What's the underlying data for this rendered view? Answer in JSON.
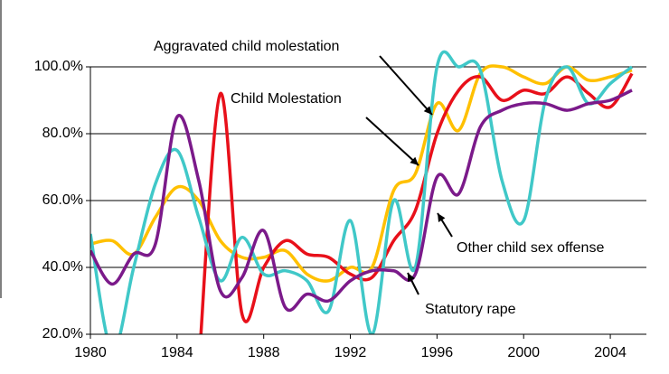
{
  "chart_data": {
    "type": "line",
    "x": [
      1980,
      1981,
      1982,
      1983,
      1984,
      1985,
      1986,
      1987,
      1988,
      1989,
      1990,
      1991,
      1992,
      1993,
      1994,
      1995,
      1996,
      1997,
      1998,
      1999,
      2000,
      2001,
      2002,
      2003,
      2004,
      2005
    ],
    "xlim": [
      1980,
      2006
    ],
    "xticks": [
      1980,
      1984,
      1988,
      1992,
      1996,
      2000,
      2004
    ],
    "ylim": [
      20,
      100
    ],
    "yticks": [
      {
        "value": 20,
        "label": "20.0%"
      },
      {
        "value": 40,
        "label": "40.0%"
      },
      {
        "value": 60,
        "label": "60.0%"
      },
      {
        "value": 80,
        "label": "80.0%"
      },
      {
        "value": 100,
        "label": "100.0%"
      }
    ],
    "grid": true,
    "series": [
      {
        "name": "Aggravated child molestation",
        "color": "#ffc000",
        "values": [
          47,
          48,
          44,
          55,
          64,
          60,
          48,
          43,
          43,
          45,
          38,
          36,
          40,
          40,
          63,
          68,
          89,
          81,
          98,
          100,
          97,
          95,
          100,
          96,
          97,
          99
        ]
      },
      {
        "name": "Child  Molestation",
        "color": "#e8101a",
        "values": [
          null,
          null,
          null,
          null,
          null,
          10,
          92,
          26,
          40,
          48,
          44,
          43,
          38,
          37,
          48,
          57,
          80,
          93,
          97,
          90,
          93,
          92,
          97,
          92,
          88,
          98
        ]
      },
      {
        "name": "Other child sex offense",
        "color": "#40c8c8",
        "values": [
          50,
          15,
          40,
          65,
          75,
          55,
          36,
          49,
          38,
          39,
          36,
          27,
          54,
          20,
          60,
          40,
          100,
          100,
          99,
          66,
          54,
          90,
          100,
          89,
          95,
          100
        ]
      },
      {
        "name": "Statutory rape",
        "color": "#7b1a8a",
        "values": [
          45,
          35,
          44,
          47,
          85,
          66,
          33,
          37,
          51,
          28,
          32,
          30,
          36,
          39,
          39,
          38,
          67,
          62,
          82,
          87,
          89,
          89,
          87,
          89,
          90,
          93
        ]
      }
    ]
  }
}
